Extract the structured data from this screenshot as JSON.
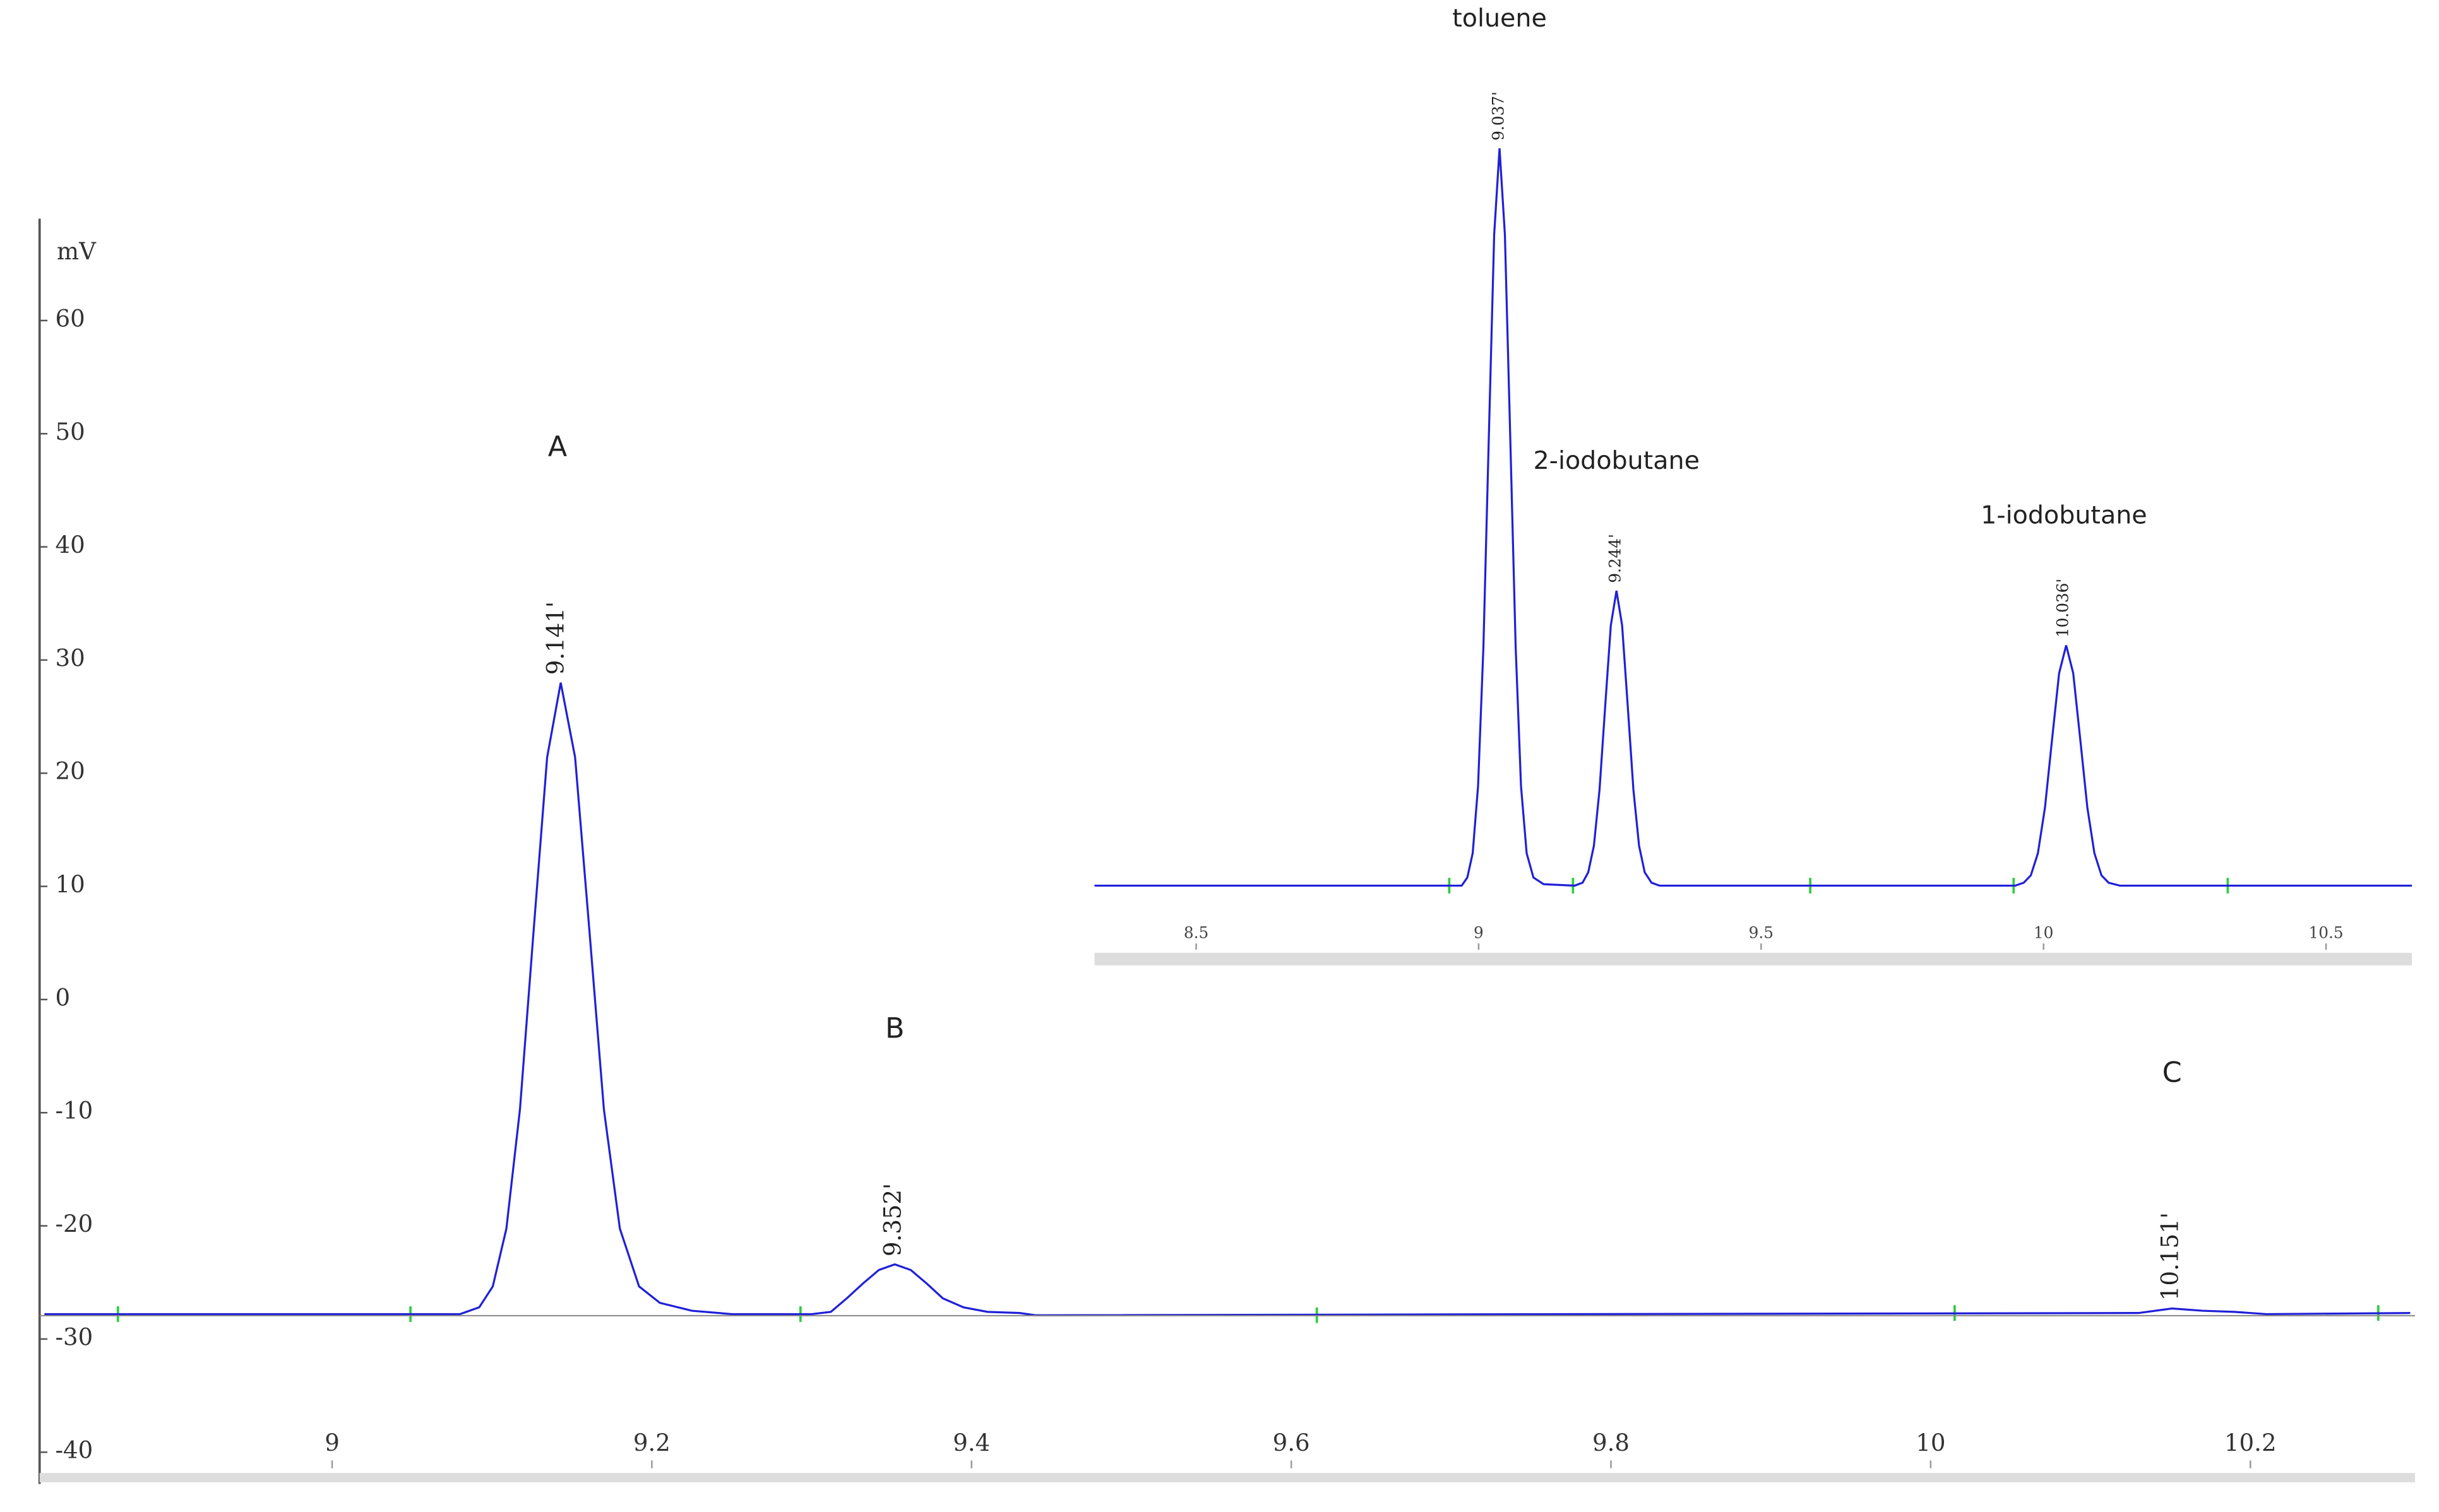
{
  "chart_data": [
    {
      "type": "line",
      "y_label": "mV",
      "color": "#2020d8",
      "xlim": [
        8.817,
        10.303
      ],
      "ylim": [
        -42.8,
        69
      ],
      "xticks": [
        9,
        9.2,
        9.4,
        9.6,
        9.8,
        10,
        10.2
      ],
      "yticks": [
        -40,
        -30,
        -20,
        -10,
        0,
        10,
        20,
        30,
        40,
        50,
        60
      ],
      "x": [
        8.82,
        9.08,
        9.092,
        9.1005,
        9.109,
        9.1175,
        9.126,
        9.1345,
        9.143,
        9.152,
        9.161,
        9.17,
        9.18,
        9.192,
        9.205,
        9.225,
        9.25,
        9.3,
        9.312,
        9.322,
        9.332,
        9.342,
        9.352,
        9.362,
        9.372,
        9.382,
        9.395,
        9.41,
        9.43,
        9.44,
        10.13,
        10.151,
        10.17,
        10.19,
        10.21,
        10.3
      ],
      "values": [
        -27.8,
        -27.8,
        -27.2,
        -25.35,
        -20.25,
        -9.7,
        6.0,
        21.4,
        28.0,
        21.4,
        6.0,
        -9.7,
        -20.25,
        -25.35,
        -26.8,
        -27.5,
        -27.8,
        -27.8,
        -27.6,
        -26.4,
        -25.1,
        -23.9,
        -23.4,
        -23.9,
        -25.1,
        -26.4,
        -27.2,
        -27.6,
        -27.7,
        -27.9,
        -27.7,
        -27.3,
        -27.5,
        -27.6,
        -27.8,
        -27.7
      ],
      "integration_marks": [
        8.866,
        9.049,
        9.293,
        9.616,
        10.015,
        10.28
      ],
      "peak_labels": [
        {
          "name": "A",
          "value": 9.141,
          "label": "9.141'"
        },
        {
          "name": "B",
          "value": 9.352,
          "label": "9.352'"
        },
        {
          "name": "C",
          "value": 10.151,
          "label": "10.151'"
        }
      ]
    },
    {
      "type": "line",
      "color": "#2020d8",
      "xlim": [
        8.32,
        10.652
      ],
      "ylim": [
        0,
        100
      ],
      "xticks": [
        8.5,
        9,
        9.5,
        10,
        10.5
      ],
      "x": [
        8.32,
        8.97,
        8.98,
        8.9895,
        8.999,
        9.0085,
        9.018,
        9.0275,
        9.037,
        9.0465,
        9.056,
        9.0655,
        9.075,
        9.085,
        9.097,
        9.115,
        9.17,
        9.184,
        9.194,
        9.204,
        9.214,
        9.224,
        9.234,
        9.244,
        9.254,
        9.264,
        9.274,
        9.284,
        9.294,
        9.306,
        9.32,
        9.95,
        9.965,
        9.9775,
        9.99,
        10.0025,
        10.015,
        10.0275,
        10.04,
        10.0525,
        10.065,
        10.0775,
        10.09,
        10.1025,
        10.115,
        10.135,
        10.652
      ],
      "values": [
        0,
        0,
        1.1,
        4.4,
        13.5,
        32.5,
        60.7,
        88.3,
        100,
        88.3,
        60.7,
        32.5,
        13.5,
        4.4,
        1.1,
        0.2,
        0,
        0.4,
        1.8,
        5.4,
        13.0,
        24.3,
        35.3,
        40,
        35.3,
        24.3,
        13.0,
        5.4,
        1.8,
        0.4,
        0,
        0,
        0.4,
        1.4,
        4.4,
        10.6,
        19.8,
        28.8,
        32.6,
        28.8,
        19.8,
        10.6,
        4.4,
        1.4,
        0.4,
        0,
        0
      ],
      "integration_marks": [
        8.948,
        9.167,
        9.587,
        9.947,
        10.326
      ],
      "peak_labels": [
        {
          "name": "toluene",
          "value": 9.037,
          "label": "9.037'"
        },
        {
          "name": "2-iodobutane",
          "value": 9.244,
          "label": "9.244'"
        },
        {
          "name": "1-iodobutane",
          "value": 10.036,
          "label": "10.036'"
        }
      ]
    }
  ]
}
